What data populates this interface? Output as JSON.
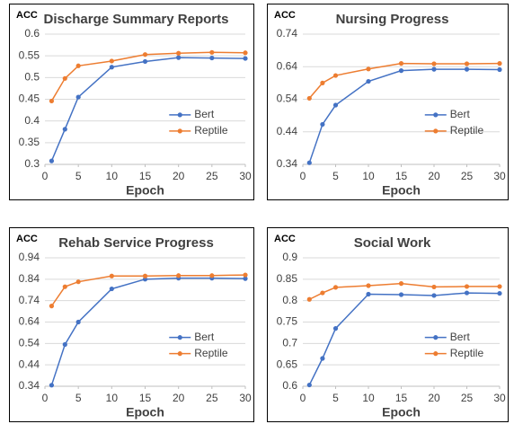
{
  "chart_data": [
    {
      "type": "line",
      "title": "Discharge Summary Reports",
      "ylabel": "ACC",
      "xlabel": "Epoch",
      "x": [
        1,
        3,
        5,
        10,
        15,
        20,
        25,
        30
      ],
      "series": [
        {
          "name": "Bert",
          "color": "#4472c4",
          "values": [
            0.308,
            0.381,
            0.455,
            0.524,
            0.537,
            0.546,
            0.545,
            0.544
          ]
        },
        {
          "name": "Reptile",
          "color": "#ed7d31",
          "values": [
            0.446,
            0.498,
            0.527,
            0.538,
            0.553,
            0.556,
            0.558,
            0.557
          ]
        }
      ],
      "xlim": [
        0,
        30
      ],
      "xticks": [
        0,
        5,
        10,
        15,
        20,
        25,
        30
      ],
      "ylim": [
        0.3,
        0.6
      ],
      "yticks": [
        0.3,
        0.35,
        0.4,
        0.45,
        0.5,
        0.55,
        0.6
      ],
      "grid": true
    },
    {
      "type": "line",
      "title": "Nursing Progress",
      "ylabel": "ACC",
      "xlabel": "Epoch",
      "x": [
        1,
        3,
        5,
        10,
        15,
        20,
        25,
        30
      ],
      "series": [
        {
          "name": "Bert",
          "color": "#4472c4",
          "values": [
            0.345,
            0.463,
            0.522,
            0.595,
            0.628,
            0.632,
            0.632,
            0.631
          ]
        },
        {
          "name": "Reptile",
          "color": "#ed7d31",
          "values": [
            0.543,
            0.59,
            0.613,
            0.633,
            0.65,
            0.649,
            0.649,
            0.65
          ]
        }
      ],
      "xlim": [
        0,
        30
      ],
      "xticks": [
        0,
        5,
        10,
        15,
        20,
        25,
        30
      ],
      "ylim": [
        0.34,
        0.74
      ],
      "yticks": [
        0.34,
        0.44,
        0.54,
        0.64,
        0.74
      ],
      "grid": true
    },
    {
      "type": "line",
      "title": "Rehab Service Progress",
      "ylabel": "ACC",
      "xlabel": "Epoch",
      "x": [
        1,
        3,
        5,
        10,
        15,
        20,
        25,
        30
      ],
      "series": [
        {
          "name": "Bert",
          "color": "#4472c4",
          "values": [
            0.345,
            0.535,
            0.64,
            0.795,
            0.84,
            0.845,
            0.845,
            0.843
          ]
        },
        {
          "name": "Reptile",
          "color": "#ed7d31",
          "values": [
            0.715,
            0.805,
            0.828,
            0.855,
            0.855,
            0.857,
            0.857,
            0.86
          ]
        }
      ],
      "xlim": [
        0,
        30
      ],
      "xticks": [
        0,
        5,
        10,
        15,
        20,
        25,
        30
      ],
      "ylim": [
        0.34,
        0.94
      ],
      "yticks": [
        0.34,
        0.44,
        0.54,
        0.64,
        0.74,
        0.84,
        0.94
      ],
      "grid": true
    },
    {
      "type": "line",
      "title": "Social Work",
      "ylabel": "ACC",
      "xlabel": "Epoch",
      "x": [
        1,
        3,
        5,
        10,
        15,
        20,
        25,
        30
      ],
      "series": [
        {
          "name": "Bert",
          "color": "#4472c4",
          "values": [
            0.603,
            0.665,
            0.735,
            0.815,
            0.814,
            0.812,
            0.818,
            0.817
          ]
        },
        {
          "name": "Reptile",
          "color": "#ed7d31",
          "values": [
            0.803,
            0.818,
            0.831,
            0.835,
            0.84,
            0.832,
            0.833,
            0.833
          ]
        }
      ],
      "xlim": [
        0,
        30
      ],
      "xticks": [
        0,
        5,
        10,
        15,
        20,
        25,
        30
      ],
      "ylim": [
        0.6,
        0.9
      ],
      "yticks": [
        0.6,
        0.65,
        0.7,
        0.75,
        0.8,
        0.85,
        0.9
      ],
      "grid": true
    }
  ]
}
